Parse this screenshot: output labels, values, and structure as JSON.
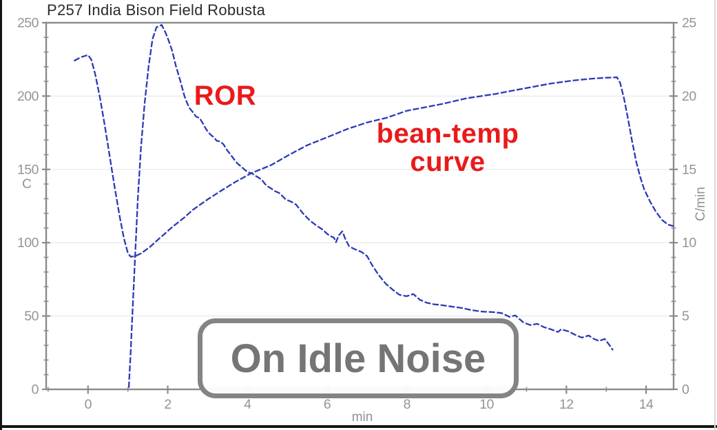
{
  "header": {
    "title": "P257 India Bison Field Robusta"
  },
  "annotations": {
    "ror_label": "ROR",
    "bean_label_line1": "bean-temp",
    "bean_label_line2": "curve",
    "overlay_badge": "On Idle Noise"
  },
  "colors": {
    "curve_blue": "#2b3ab5",
    "annotation_red": "#ea1a1a",
    "badge_gray": "#757575",
    "axis_gray": "#8f8f8f",
    "tick_label_gray": "#949494",
    "grid_gray": "#ededed",
    "frame_gray": "#8a8a8a",
    "title_text": "#2b2b2b"
  },
  "chart_data": {
    "type": "line",
    "title": "P257 India Bison Field Robusta",
    "xlabel": "min",
    "ylabel_left": "C",
    "ylabel_right": "C/min",
    "xlim": [
      -1.05,
      14.69
    ],
    "ylim_left": [
      0,
      250
    ],
    "ylim_right": [
      0,
      25
    ],
    "x_ticks": [
      0,
      2,
      4,
      6,
      8,
      10,
      12,
      14
    ],
    "x_minor_step": 1,
    "y_left_ticks": [
      0,
      50,
      100,
      150,
      200,
      250
    ],
    "y_left_minor_step": 10,
    "y_right_ticks": [
      0,
      5,
      10,
      15,
      20,
      25
    ],
    "y_right_minor_step": 1,
    "grid": {
      "horizontal_major": true,
      "vertical": false
    },
    "legend_position": "none",
    "series": [
      {
        "name": "bean-temp curve",
        "axis": "left",
        "color": "#2b3ab5",
        "points": [
          [
            -0.35,
            224
          ],
          [
            -0.18,
            226.5
          ],
          [
            0,
            228
          ],
          [
            0.08,
            225
          ],
          [
            0.18,
            215
          ],
          [
            0.3,
            199
          ],
          [
            0.42,
            180
          ],
          [
            0.55,
            158
          ],
          [
            0.68,
            136
          ],
          [
            0.8,
            117
          ],
          [
            0.9,
            103
          ],
          [
            1.0,
            93
          ],
          [
            1.07,
            90.4
          ],
          [
            1.2,
            91
          ],
          [
            1.33,
            92.7
          ],
          [
            1.55,
            97
          ],
          [
            1.68,
            100.3
          ],
          [
            1.9,
            105.5
          ],
          [
            2.11,
            110.6
          ],
          [
            2.4,
            116.8
          ],
          [
            2.63,
            122.4
          ],
          [
            3.0,
            129.5
          ],
          [
            3.32,
            135.1
          ],
          [
            3.7,
            141.5
          ],
          [
            4.1,
            147.4
          ],
          [
            4.6,
            153
          ],
          [
            5.05,
            160
          ],
          [
            5.5,
            166.5
          ],
          [
            6.08,
            172.8
          ],
          [
            6.5,
            177.5
          ],
          [
            7.0,
            182
          ],
          [
            7.47,
            185
          ],
          [
            8.0,
            190
          ],
          [
            8.85,
            194.4
          ],
          [
            9.5,
            198.5
          ],
          [
            10.23,
            201.5
          ],
          [
            11.0,
            205.5
          ],
          [
            11.62,
            208.6
          ],
          [
            12.2,
            210.7
          ],
          [
            12.65,
            211.9
          ],
          [
            13.0,
            212.5
          ],
          [
            13.27,
            212.8
          ],
          [
            13.35,
            209
          ],
          [
            13.45,
            198
          ],
          [
            13.55,
            184
          ],
          [
            13.65,
            169
          ],
          [
            13.75,
            155.5
          ],
          [
            13.85,
            145
          ],
          [
            13.95,
            136.5
          ],
          [
            14.1,
            128
          ],
          [
            14.25,
            121
          ],
          [
            14.4,
            115.5
          ],
          [
            14.55,
            112.3
          ],
          [
            14.7,
            111.2
          ]
        ]
      },
      {
        "name": "ROR",
        "axis": "right",
        "color": "#2b3ab5",
        "points": [
          [
            1.01,
            -1
          ],
          [
            1.03,
            0.5
          ],
          [
            1.07,
            2.5
          ],
          [
            1.12,
            5.5
          ],
          [
            1.18,
            9
          ],
          [
            1.25,
            13
          ],
          [
            1.33,
            16.5
          ],
          [
            1.42,
            19.5
          ],
          [
            1.52,
            22
          ],
          [
            1.62,
            23.9
          ],
          [
            1.72,
            24.7
          ],
          [
            1.85,
            24.85
          ],
          [
            1.95,
            24.3
          ],
          [
            2.02,
            23.8
          ],
          [
            2.11,
            23.1
          ],
          [
            2.2,
            22.1
          ],
          [
            2.32,
            21
          ],
          [
            2.42,
            20
          ],
          [
            2.49,
            19.5
          ],
          [
            2.54,
            19.2
          ],
          [
            2.63,
            18.9
          ],
          [
            2.71,
            18.6
          ],
          [
            2.8,
            18.5
          ],
          [
            2.89,
            18.1
          ],
          [
            2.97,
            17.7
          ],
          [
            3.06,
            17.4
          ],
          [
            3.15,
            17.2
          ],
          [
            3.23,
            16.95
          ],
          [
            3.32,
            16.9
          ],
          [
            3.4,
            16.7
          ],
          [
            3.49,
            16.3
          ],
          [
            3.58,
            16
          ],
          [
            3.66,
            15.7
          ],
          [
            3.75,
            15.4
          ],
          [
            3.84,
            15.2
          ],
          [
            3.92,
            15
          ],
          [
            4.01,
            14.8
          ],
          [
            4.1,
            14.75
          ],
          [
            4.18,
            14.6
          ],
          [
            4.27,
            14.45
          ],
          [
            4.36,
            14.3
          ],
          [
            4.44,
            14
          ],
          [
            4.53,
            13.8
          ],
          [
            4.62,
            13.65
          ],
          [
            4.7,
            13.5
          ],
          [
            4.79,
            13.4
          ],
          [
            4.87,
            13.2
          ],
          [
            4.96,
            12.95
          ],
          [
            5.05,
            12.85
          ],
          [
            5.13,
            12.75
          ],
          [
            5.22,
            12.6
          ],
          [
            5.39,
            12.0
          ],
          [
            5.57,
            11.5
          ],
          [
            5.74,
            11.15
          ],
          [
            5.88,
            10.9
          ],
          [
            6.0,
            10.6
          ],
          [
            6.08,
            10.45
          ],
          [
            6.17,
            10.35
          ],
          [
            6.22,
            10.03
          ],
          [
            6.29,
            10.5
          ],
          [
            6.38,
            10.78
          ],
          [
            6.46,
            10.22
          ],
          [
            6.55,
            9.75
          ],
          [
            6.69,
            9.56
          ],
          [
            6.86,
            9.37
          ],
          [
            7.0,
            9.09
          ],
          [
            7.12,
            8.5
          ],
          [
            7.29,
            7.8
          ],
          [
            7.47,
            7.2
          ],
          [
            7.64,
            6.8
          ],
          [
            7.81,
            6.45
          ],
          [
            7.99,
            6.35
          ],
          [
            8.16,
            6.5
          ],
          [
            8.33,
            6.1
          ],
          [
            8.5,
            5.9
          ],
          [
            8.68,
            5.8
          ],
          [
            8.85,
            5.75
          ],
          [
            9.11,
            5.65
          ],
          [
            9.37,
            5.55
          ],
          [
            9.63,
            5.4
          ],
          [
            9.89,
            5.3
          ],
          [
            10.15,
            5.27
          ],
          [
            10.37,
            5.2
          ],
          [
            10.58,
            4.94
          ],
          [
            10.72,
            5.04
          ],
          [
            10.92,
            4.57
          ],
          [
            11.1,
            4.38
          ],
          [
            11.27,
            4.47
          ],
          [
            11.44,
            4.24
          ],
          [
            11.61,
            4.1
          ],
          [
            11.79,
            3.91
          ],
          [
            11.87,
            4.1
          ],
          [
            12.05,
            3.95
          ],
          [
            12.22,
            3.72
          ],
          [
            12.39,
            3.53
          ],
          [
            12.56,
            3.67
          ],
          [
            12.69,
            3.44
          ],
          [
            12.82,
            3.3
          ],
          [
            12.96,
            3.44
          ],
          [
            13.07,
            3.06
          ],
          [
            13.13,
            2.82
          ],
          [
            13.17,
            2.68
          ]
        ]
      }
    ]
  }
}
